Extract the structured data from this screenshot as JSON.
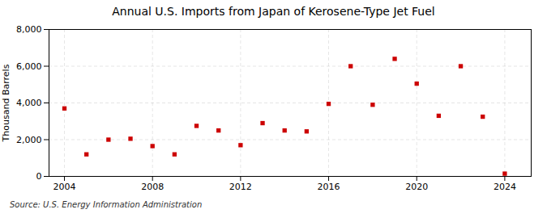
{
  "chart_data": {
    "type": "scatter",
    "title": "Annual U.S. Imports from Japan of Kerosene-Type Jet Fuel",
    "ylabel": "Thousand Barrels",
    "annotations": [
      "Source: U.S. Energy Information Administration"
    ],
    "x": [
      2004,
      2005,
      2006,
      2007,
      2008,
      2009,
      2010,
      2011,
      2012,
      2013,
      2014,
      2015,
      2016,
      2017,
      2018,
      2019,
      2020,
      2021,
      2022,
      2023,
      2024
    ],
    "values": [
      3700,
      1200,
      2000,
      2050,
      1650,
      1200,
      2750,
      2500,
      1700,
      2900,
      2500,
      2450,
      3950,
      6000,
      3900,
      6400,
      5050,
      3300,
      6000,
      3250,
      150
    ],
    "color": "#cc0000",
    "marker": "square",
    "xlim": [
      2003.3,
      2025.2
    ],
    "ylim": [
      0,
      8000
    ],
    "xticks": [
      2004,
      2008,
      2012,
      2016,
      2020,
      2024
    ],
    "yticks": [
      0,
      {
        "value": 2000,
        "label": "2,000"
      },
      {
        "value": 4000,
        "label": "4,000"
      },
      {
        "value": 6000,
        "label": "6,000"
      },
      {
        "value": 8000,
        "label": "8,000"
      }
    ],
    "grid": true
  }
}
